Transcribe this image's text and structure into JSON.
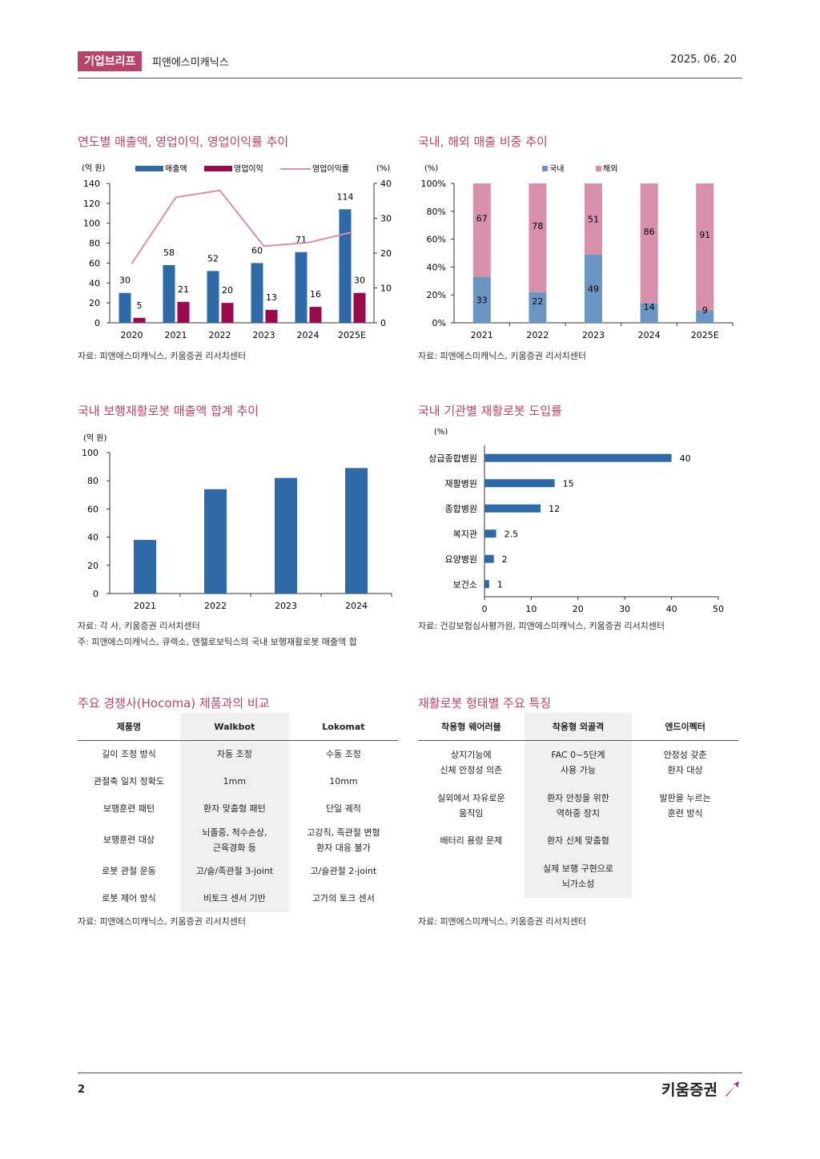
{
  "header": {
    "tag": "기업브리프",
    "company": "피앤에스미캐닉스",
    "date": "2025. 06. 20"
  },
  "footer": {
    "page": "2",
    "logo": "키움증권"
  },
  "chart1": {
    "title": "연도별 매출액, 영업이익, 영업이익률 추이",
    "source": "자료: 피앤에스미캐닉스, 키움증권 리서치센터",
    "chart_data": {
      "type": "bar",
      "ylabel_left": "(억 원)",
      "ylabel_right": "(%)",
      "categories": [
        "2020",
        "2021",
        "2022",
        "2023",
        "2024",
        "2025E"
      ],
      "ylim": [
        0,
        140
      ],
      "ylim_right": [
        0,
        40
      ],
      "yticks": [
        "0",
        "20",
        "40",
        "60",
        "80",
        "100",
        "120",
        "140"
      ],
      "yticks_right": [
        "0",
        "10",
        "20",
        "30",
        "40"
      ],
      "series": [
        {
          "name": "매출액",
          "values": [
            30,
            58,
            52,
            60,
            71,
            114
          ],
          "color": "#2e6aa8"
        },
        {
          "name": "영업이익",
          "values": [
            5,
            21,
            20,
            13,
            16,
            30
          ],
          "color": "#9b0a4a"
        },
        {
          "name": "영업이익률",
          "values": [
            17,
            36,
            38,
            22,
            23,
            26
          ],
          "color": "#d98fae"
        }
      ],
      "legend": "top"
    }
  },
  "chart2": {
    "title": "국내, 해외 매출 비중 추이",
    "source": "자료: 피앤에스미캐닉스, 키움증권 리서치센터",
    "chart_data": {
      "type": "bar",
      "stacked": true,
      "ylabel": "(%)",
      "categories": [
        "2021",
        "2022",
        "2023",
        "2024",
        "2025E"
      ],
      "yticks": [
        "0%",
        "20%",
        "40%",
        "60%",
        "80%",
        "100%"
      ],
      "series": [
        {
          "name": "국내",
          "values": [
            33,
            22,
            49,
            14,
            9
          ],
          "color": "#6b96c4"
        },
        {
          "name": "해외",
          "values": [
            67,
            78,
            51,
            86,
            91
          ],
          "color": "#d890aa"
        }
      ],
      "legend": "top"
    }
  },
  "chart3": {
    "title": "국내 보행재활로봇 매출액 합계 추이",
    "source": "자료: 각 사, 키움증권 리서치센터",
    "note": "주: 피앤에스미캐닉스, 큐렉소, 엔젤로보틱스의 국내 보행재활로봇 매출액 합",
    "chart_data": {
      "type": "bar",
      "ylabel": "(억 원)",
      "categories": [
        "2021",
        "2022",
        "2023",
        "2024"
      ],
      "values": [
        38,
        74,
        82,
        89
      ],
      "ylim": [
        0,
        100
      ],
      "yticks": [
        "0",
        "20",
        "40",
        "60",
        "80",
        "100"
      ],
      "color": "#2e6aa8"
    }
  },
  "chart4": {
    "title": "국내 기관별 재활로봇 도입률",
    "source": "자료: 건강보험심사평가원, 피앤에스미캐닉스, 키움증권 리서치센터",
    "chart_data": {
      "type": "bar",
      "orientation": "horizontal",
      "ylabel": "(%)",
      "categories": [
        "상급종합병원",
        "재활병원",
        "종합병원",
        "복지관",
        "요양병원",
        "보건소"
      ],
      "values": [
        40,
        15,
        12,
        2.5,
        2,
        1
      ],
      "labels": [
        "40",
        "15",
        "12",
        "2.5",
        "2",
        "1"
      ],
      "xlim": [
        0,
        50
      ],
      "xticks": [
        "0",
        "10",
        "20",
        "30",
        "40",
        "50"
      ],
      "color": "#2e6aa8"
    }
  },
  "table1": {
    "title": "주요 경쟁사(Hocoma) 제품과의 비교",
    "source": "자료: 피앤에스미캐닉스, 키움증권 리서치센터",
    "headers": [
      "제품명",
      "Walkbot",
      "Lokomat"
    ],
    "rows": [
      [
        "길이 조정 방식",
        "자동 조정",
        "수동 조정"
      ],
      [
        "관절축 일치 정확도",
        "1mm",
        "10mm"
      ],
      [
        "보행훈련 패턴",
        "환자 맞춤형 패턴",
        "단일 궤적"
      ],
      [
        "보행훈련 대상",
        "뇌졸중, 척수손상,\n근육경화 등",
        "고강직, 족관절 변형\n환자 대응 불가"
      ],
      [
        "로봇 관절 운동",
        "고/슬/족관절 3-joint",
        "고/슬관절 2-joint"
      ],
      [
        "로봇 제어 방식",
        "비토크 센서 기반",
        "고가의 토크 센서"
      ]
    ]
  },
  "table2": {
    "title": "재활로봇 형태별 주요 특징",
    "source": "자료: 피앤에스미캐닉스, 키움증권 리서치센터",
    "headers": [
      "착용형 웨어러블",
      "착용형 외골격",
      "엔드이펙터"
    ],
    "rows": [
      [
        "상지기능에\n신체 안정성 의존",
        "FAC 0~5단계\n사용 가능",
        "안정성 갖춘\n환자 대상"
      ],
      [
        "실외에서 자유로운\n움직임",
        "환자 안정을 위한\n역하중 장치",
        "발판을 누르는\n훈련 방식"
      ],
      [
        "배터리 용량 문제",
        "환자 신체 맞춤형",
        ""
      ],
      [
        "",
        "실제 보행 구현으로\n뇌가소성",
        ""
      ]
    ]
  }
}
